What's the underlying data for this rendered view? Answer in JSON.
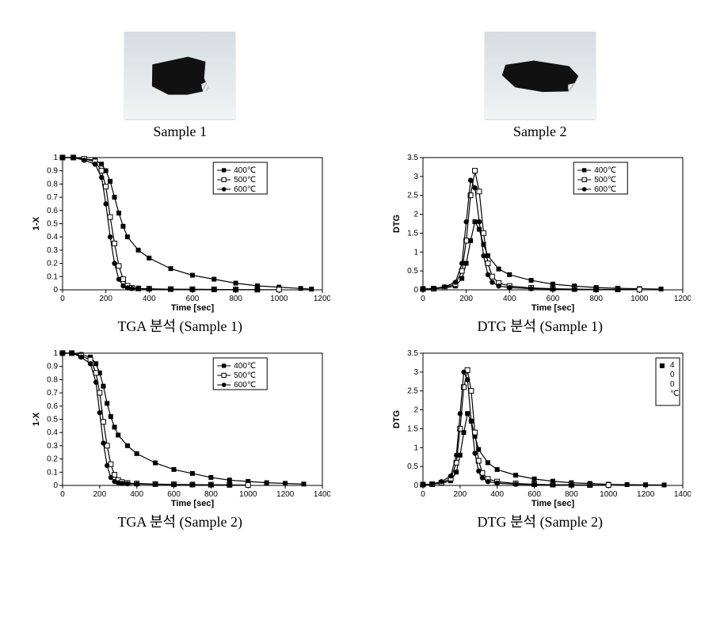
{
  "photos": {
    "sample1_caption": "Sample 1",
    "sample2_caption": "Sample 2"
  },
  "captions": {
    "tga1": "TGA 분석 (Sample 1)",
    "dtg1": "DTG 분석 (Sample 1)",
    "tga2": "TGA 분석 (Sample 2)",
    "dtg2": "DTG 분석 (Sample 2)"
  },
  "common": {
    "xlabel": "Time [sec]",
    "ylabel_tga": "1-X",
    "ylabel_dtg": "DTG",
    "series_labels": [
      "400℃",
      "500℃",
      "600℃"
    ],
    "series_markers": [
      "filled-square",
      "open-square",
      "filled-circle"
    ],
    "series_color": "#000000",
    "bg_color": "#ffffff",
    "axis_color": "#000000",
    "axis_line_width": 1,
    "marker_size": 4,
    "line_width": 1.2,
    "label_fontsize": 10,
    "axis_title_fontsize": 11
  },
  "charts": {
    "tga1": {
      "type": "line",
      "xlim": [
        0,
        1200
      ],
      "xtick_step": 200,
      "ylim": [
        0,
        1
      ],
      "ytick_step": 0.1,
      "series": {
        "400C": [
          [
            0,
            1
          ],
          [
            50,
            1
          ],
          [
            100,
            0.99
          ],
          [
            150,
            0.98
          ],
          [
            180,
            0.95
          ],
          [
            200,
            0.9
          ],
          [
            220,
            0.82
          ],
          [
            240,
            0.7
          ],
          [
            260,
            0.58
          ],
          [
            280,
            0.48
          ],
          [
            300,
            0.4
          ],
          [
            350,
            0.3
          ],
          [
            400,
            0.24
          ],
          [
            500,
            0.16
          ],
          [
            600,
            0.11
          ],
          [
            700,
            0.08
          ],
          [
            800,
            0.05
          ],
          [
            900,
            0.03
          ],
          [
            1000,
            0.02
          ],
          [
            1100,
            0.01
          ],
          [
            1150,
            0.005
          ]
        ],
        "500C": [
          [
            0,
            1
          ],
          [
            50,
            1
          ],
          [
            100,
            0.99
          ],
          [
            150,
            0.97
          ],
          [
            180,
            0.9
          ],
          [
            200,
            0.78
          ],
          [
            220,
            0.55
          ],
          [
            240,
            0.35
          ],
          [
            260,
            0.18
          ],
          [
            280,
            0.08
          ],
          [
            300,
            0.03
          ],
          [
            320,
            0.015
          ],
          [
            350,
            0.01
          ],
          [
            400,
            0.008
          ],
          [
            500,
            0.005
          ],
          [
            600,
            0.004
          ],
          [
            700,
            0.003
          ],
          [
            800,
            0.002
          ],
          [
            900,
            0.001
          ],
          [
            1000,
            0.001
          ]
        ],
        "600C": [
          [
            0,
            1
          ],
          [
            50,
            1
          ],
          [
            100,
            0.98
          ],
          [
            150,
            0.95
          ],
          [
            180,
            0.85
          ],
          [
            200,
            0.65
          ],
          [
            220,
            0.4
          ],
          [
            240,
            0.2
          ],
          [
            260,
            0.08
          ],
          [
            280,
            0.03
          ],
          [
            300,
            0.015
          ],
          [
            320,
            0.01
          ],
          [
            350,
            0.008
          ],
          [
            400,
            0.006
          ],
          [
            500,
            0.004
          ],
          [
            600,
            0.003
          ],
          [
            700,
            0.002
          ],
          [
            800,
            0.001
          ],
          [
            900,
            0.001
          ]
        ]
      },
      "legend_pos": "top-right-inset"
    },
    "dtg1": {
      "type": "line",
      "xlim": [
        0,
        1200
      ],
      "xtick_step": 200,
      "ylim": [
        0,
        3.5
      ],
      "ytick_step": 0.5,
      "series": {
        "400C": [
          [
            0,
            0.02
          ],
          [
            50,
            0.03
          ],
          [
            100,
            0.05
          ],
          [
            150,
            0.1
          ],
          [
            180,
            0.3
          ],
          [
            200,
            0.7
          ],
          [
            220,
            1.3
          ],
          [
            240,
            1.8
          ],
          [
            260,
            1.6
          ],
          [
            280,
            1.2
          ],
          [
            300,
            0.9
          ],
          [
            350,
            0.55
          ],
          [
            400,
            0.4
          ],
          [
            500,
            0.25
          ],
          [
            600,
            0.15
          ],
          [
            700,
            0.1
          ],
          [
            800,
            0.06
          ],
          [
            900,
            0.04
          ],
          [
            1000,
            0.03
          ],
          [
            1100,
            0.02
          ]
        ],
        "500C": [
          [
            0,
            0.02
          ],
          [
            50,
            0.03
          ],
          [
            100,
            0.06
          ],
          [
            150,
            0.15
          ],
          [
            180,
            0.5
          ],
          [
            200,
            1.3
          ],
          [
            220,
            2.5
          ],
          [
            240,
            3.15
          ],
          [
            260,
            2.6
          ],
          [
            280,
            1.5
          ],
          [
            300,
            0.7
          ],
          [
            320,
            0.35
          ],
          [
            350,
            0.18
          ],
          [
            400,
            0.1
          ],
          [
            500,
            0.05
          ],
          [
            600,
            0.03
          ],
          [
            700,
            0.02
          ],
          [
            800,
            0.01
          ],
          [
            900,
            0.01
          ],
          [
            1000,
            0.005
          ]
        ],
        "600C": [
          [
            0,
            0.02
          ],
          [
            50,
            0.04
          ],
          [
            100,
            0.08
          ],
          [
            150,
            0.2
          ],
          [
            180,
            0.7
          ],
          [
            200,
            1.8
          ],
          [
            220,
            2.9
          ],
          [
            240,
            2.7
          ],
          [
            260,
            1.8
          ],
          [
            280,
            0.9
          ],
          [
            300,
            0.4
          ],
          [
            320,
            0.2
          ],
          [
            350,
            0.1
          ],
          [
            400,
            0.06
          ],
          [
            500,
            0.03
          ],
          [
            600,
            0.02
          ],
          [
            700,
            0.01
          ],
          [
            800,
            0.01
          ],
          [
            900,
            0.005
          ]
        ]
      },
      "legend_pos": "top-right-inset"
    },
    "tga2": {
      "type": "line",
      "xlim": [
        0,
        1400
      ],
      "xtick_step": 200,
      "ylim": [
        0,
        1
      ],
      "ytick_step": 0.1,
      "series": {
        "400C": [
          [
            0,
            1
          ],
          [
            50,
            1
          ],
          [
            100,
            0.99
          ],
          [
            150,
            0.97
          ],
          [
            180,
            0.92
          ],
          [
            200,
            0.85
          ],
          [
            220,
            0.75
          ],
          [
            240,
            0.62
          ],
          [
            260,
            0.52
          ],
          [
            280,
            0.44
          ],
          [
            300,
            0.38
          ],
          [
            350,
            0.3
          ],
          [
            400,
            0.24
          ],
          [
            500,
            0.17
          ],
          [
            600,
            0.12
          ],
          [
            700,
            0.09
          ],
          [
            800,
            0.06
          ],
          [
            900,
            0.04
          ],
          [
            1000,
            0.03
          ],
          [
            1100,
            0.02
          ],
          [
            1200,
            0.015
          ],
          [
            1300,
            0.01
          ]
        ],
        "500C": [
          [
            0,
            1
          ],
          [
            50,
            1
          ],
          [
            100,
            0.98
          ],
          [
            150,
            0.95
          ],
          [
            180,
            0.85
          ],
          [
            200,
            0.7
          ],
          [
            220,
            0.48
          ],
          [
            240,
            0.3
          ],
          [
            260,
            0.16
          ],
          [
            280,
            0.08
          ],
          [
            300,
            0.04
          ],
          [
            320,
            0.025
          ],
          [
            350,
            0.018
          ],
          [
            400,
            0.014
          ],
          [
            500,
            0.01
          ],
          [
            600,
            0.008
          ],
          [
            700,
            0.006
          ],
          [
            800,
            0.005
          ],
          [
            900,
            0.004
          ],
          [
            1000,
            0.003
          ]
        ],
        "600C": [
          [
            0,
            1
          ],
          [
            50,
            1
          ],
          [
            100,
            0.97
          ],
          [
            150,
            0.92
          ],
          [
            180,
            0.78
          ],
          [
            200,
            0.55
          ],
          [
            220,
            0.32
          ],
          [
            240,
            0.15
          ],
          [
            260,
            0.06
          ],
          [
            280,
            0.03
          ],
          [
            300,
            0.02
          ],
          [
            320,
            0.015
          ],
          [
            350,
            0.012
          ],
          [
            400,
            0.01
          ],
          [
            500,
            0.008
          ],
          [
            600,
            0.006
          ],
          [
            700,
            0.005
          ],
          [
            800,
            0.004
          ],
          [
            900,
            0.003
          ]
        ]
      },
      "legend_pos": "top-right-inset"
    },
    "dtg2": {
      "type": "line",
      "xlim": [
        0,
        1400
      ],
      "xtick_step": 200,
      "ylim": [
        0,
        3.5
      ],
      "ytick_step": 0.5,
      "series": {
        "400C": [
          [
            0,
            0.02
          ],
          [
            50,
            0.03
          ],
          [
            100,
            0.06
          ],
          [
            150,
            0.12
          ],
          [
            180,
            0.35
          ],
          [
            200,
            0.8
          ],
          [
            220,
            1.4
          ],
          [
            240,
            1.9
          ],
          [
            260,
            1.7
          ],
          [
            280,
            1.3
          ],
          [
            300,
            0.95
          ],
          [
            350,
            0.6
          ],
          [
            400,
            0.42
          ],
          [
            500,
            0.27
          ],
          [
            600,
            0.17
          ],
          [
            700,
            0.11
          ],
          [
            800,
            0.07
          ],
          [
            900,
            0.05
          ],
          [
            1000,
            0.03
          ],
          [
            1100,
            0.02
          ],
          [
            1200,
            0.015
          ],
          [
            1300,
            0.01
          ]
        ],
        "500C": [
          [
            0,
            0.02
          ],
          [
            50,
            0.03
          ],
          [
            100,
            0.07
          ],
          [
            150,
            0.18
          ],
          [
            180,
            0.6
          ],
          [
            200,
            1.5
          ],
          [
            220,
            2.6
          ],
          [
            240,
            3.05
          ],
          [
            260,
            2.5
          ],
          [
            280,
            1.4
          ],
          [
            300,
            0.65
          ],
          [
            320,
            0.33
          ],
          [
            350,
            0.17
          ],
          [
            400,
            0.1
          ],
          [
            500,
            0.05
          ],
          [
            600,
            0.03
          ],
          [
            700,
            0.02
          ],
          [
            800,
            0.015
          ],
          [
            900,
            0.01
          ],
          [
            1000,
            0.008
          ]
        ],
        "600C": [
          [
            0,
            0.02
          ],
          [
            50,
            0.04
          ],
          [
            100,
            0.1
          ],
          [
            150,
            0.25
          ],
          [
            180,
            0.8
          ],
          [
            200,
            1.9
          ],
          [
            220,
            3.0
          ],
          [
            240,
            2.8
          ],
          [
            260,
            1.7
          ],
          [
            280,
            0.85
          ],
          [
            300,
            0.38
          ],
          [
            320,
            0.2
          ],
          [
            350,
            0.1
          ],
          [
            400,
            0.06
          ],
          [
            500,
            0.03
          ],
          [
            600,
            0.02
          ],
          [
            700,
            0.015
          ],
          [
            800,
            0.01
          ],
          [
            900,
            0.008
          ]
        ]
      },
      "legend_pos": "top-right-inset",
      "legend_broken": true,
      "legend_broken_labels": [
        "4",
        "0",
        "0",
        "℃"
      ]
    }
  }
}
